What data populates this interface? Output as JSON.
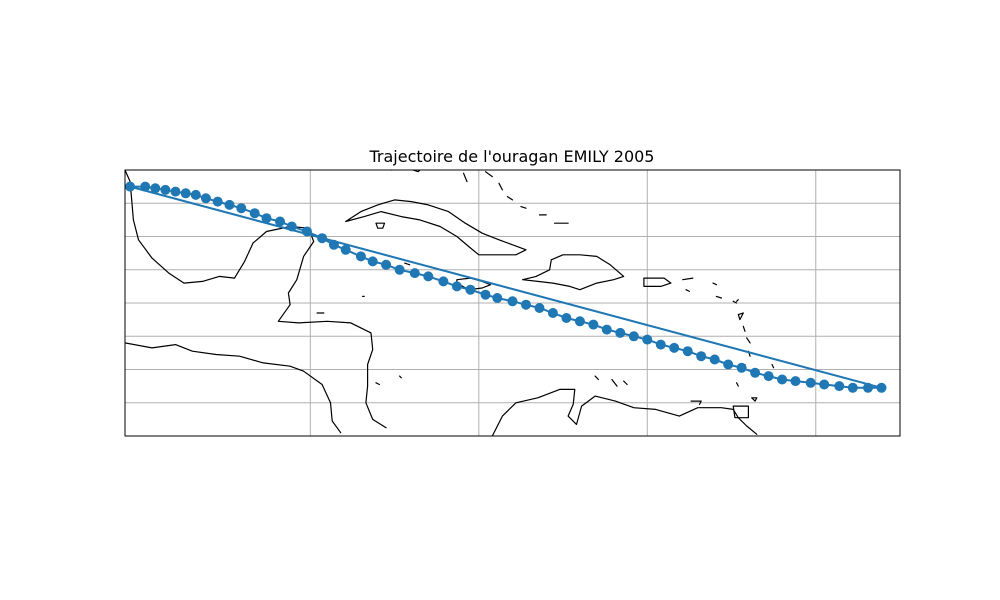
{
  "title": "Trajectoire de l'ouragan EMILY 2005",
  "colors": {
    "track": "#1f77b4",
    "coastline": "#000000",
    "grid": "#b0b0b0",
    "background": "#ffffff"
  },
  "map": {
    "projection": "PlateCarree",
    "extent_lon": [
      -98,
      -52
    ],
    "extent_lat": [
      9,
      25
    ],
    "grid": true,
    "gridline_lon": [
      -87,
      -77,
      -67,
      -57
    ],
    "gridline_lat": [
      11,
      13,
      15,
      17,
      19,
      21,
      23
    ]
  },
  "chart_data": {
    "type": "line",
    "title": "Trajectoire de l'ouragan EMILY 2005",
    "series": [
      {
        "marker": "circle",
        "path": "straight-line return leg without markers from east end back to west end",
        "points": [
          [
            -97.7,
            24.0
          ],
          [
            -96.8,
            24.0
          ],
          [
            -96.2,
            23.9
          ],
          [
            -95.6,
            23.8
          ],
          [
            -95.0,
            23.7
          ],
          [
            -94.4,
            23.6
          ],
          [
            -93.8,
            23.5
          ],
          [
            -93.2,
            23.3
          ],
          [
            -92.5,
            23.1
          ],
          [
            -91.8,
            22.9
          ],
          [
            -91.1,
            22.7
          ],
          [
            -90.3,
            22.4
          ],
          [
            -89.6,
            22.1
          ],
          [
            -88.8,
            21.9
          ],
          [
            -88.1,
            21.6
          ],
          [
            -87.2,
            21.3
          ],
          [
            -86.3,
            20.9
          ],
          [
            -85.6,
            20.5
          ],
          [
            -84.9,
            20.2
          ],
          [
            -84.0,
            19.8
          ],
          [
            -83.3,
            19.5
          ],
          [
            -82.5,
            19.3
          ],
          [
            -81.7,
            19.0
          ],
          [
            -80.8,
            18.8
          ],
          [
            -80.0,
            18.6
          ],
          [
            -79.1,
            18.3
          ],
          [
            -78.3,
            18.0
          ],
          [
            -77.5,
            17.8
          ],
          [
            -76.6,
            17.5
          ],
          [
            -75.9,
            17.3
          ],
          [
            -75.0,
            17.1
          ],
          [
            -74.2,
            16.9
          ],
          [
            -73.4,
            16.7
          ],
          [
            -72.6,
            16.4
          ],
          [
            -71.8,
            16.1
          ],
          [
            -71.0,
            15.9
          ],
          [
            -70.2,
            15.7
          ],
          [
            -69.4,
            15.4
          ],
          [
            -68.6,
            15.2
          ],
          [
            -67.8,
            15.0
          ],
          [
            -67.0,
            14.8
          ],
          [
            -66.2,
            14.5
          ],
          [
            -65.4,
            14.3
          ],
          [
            -64.6,
            14.1
          ],
          [
            -63.8,
            13.8
          ],
          [
            -63.0,
            13.6
          ],
          [
            -62.2,
            13.3
          ],
          [
            -61.4,
            13.1
          ],
          [
            -60.6,
            12.8
          ],
          [
            -59.8,
            12.6
          ],
          [
            -59.0,
            12.4
          ],
          [
            -58.2,
            12.3
          ],
          [
            -57.3,
            12.2
          ],
          [
            -56.5,
            12.1
          ],
          [
            -55.6,
            12.0
          ],
          [
            -54.8,
            11.9
          ],
          [
            -53.9,
            11.9
          ],
          [
            -53.1,
            11.9
          ]
        ]
      }
    ]
  },
  "coastlines": {
    "cuba": [
      [
        -84.9,
        21.9
      ],
      [
        -84.0,
        22.5
      ],
      [
        -83.0,
        22.9
      ],
      [
        -82.0,
        23.2
      ],
      [
        -81.0,
        23.1
      ],
      [
        -80.0,
        22.9
      ],
      [
        -78.8,
        22.5
      ],
      [
        -77.8,
        21.8
      ],
      [
        -76.8,
        21.2
      ],
      [
        -75.8,
        20.8
      ],
      [
        -74.2,
        20.2
      ],
      [
        -74.8,
        19.9
      ],
      [
        -75.8,
        19.9
      ],
      [
        -77.0,
        19.9
      ],
      [
        -77.6,
        20.4
      ],
      [
        -78.3,
        21.0
      ],
      [
        -79.3,
        21.6
      ],
      [
        -80.5,
        22.0
      ],
      [
        -81.6,
        22.2
      ],
      [
        -82.8,
        22.5
      ],
      [
        -83.8,
        22.2
      ],
      [
        -84.9,
        21.9
      ]
    ],
    "isla_juventud": [
      [
        -83.1,
        21.8
      ],
      [
        -82.6,
        21.8
      ],
      [
        -82.7,
        21.5
      ],
      [
        -83.0,
        21.5
      ],
      [
        -83.1,
        21.8
      ]
    ],
    "jamaica": [
      [
        -78.3,
        18.4
      ],
      [
        -77.5,
        18.5
      ],
      [
        -76.8,
        18.3
      ],
      [
        -76.3,
        18.1
      ],
      [
        -76.8,
        17.9
      ],
      [
        -77.6,
        17.8
      ],
      [
        -78.3,
        18.2
      ],
      [
        -78.3,
        18.4
      ]
    ],
    "hispaniola": [
      [
        -74.4,
        18.4
      ],
      [
        -73.6,
        18.6
      ],
      [
        -72.8,
        19.0
      ],
      [
        -72.7,
        19.6
      ],
      [
        -72.0,
        19.9
      ],
      [
        -71.0,
        19.9
      ],
      [
        -70.0,
        19.8
      ],
      [
        -69.2,
        19.3
      ],
      [
        -68.4,
        18.6
      ],
      [
        -69.0,
        18.4
      ],
      [
        -70.0,
        18.2
      ],
      [
        -71.0,
        17.8
      ],
      [
        -71.6,
        18.0
      ],
      [
        -72.6,
        18.2
      ],
      [
        -73.5,
        18.3
      ],
      [
        -74.4,
        18.4
      ]
    ],
    "puerto_rico": [
      [
        -67.2,
        18.5
      ],
      [
        -66.0,
        18.5
      ],
      [
        -65.6,
        18.2
      ],
      [
        -66.2,
        18.0
      ],
      [
        -67.2,
        18.0
      ],
      [
        -67.2,
        18.5
      ]
    ],
    "yucatan": [
      [
        -91.5,
        18.5
      ],
      [
        -90.9,
        19.5
      ],
      [
        -90.4,
        20.6
      ],
      [
        -89.6,
        21.3
      ],
      [
        -88.2,
        21.6
      ],
      [
        -87.1,
        21.5
      ],
      [
        -86.8,
        20.7
      ],
      [
        -87.4,
        19.8
      ],
      [
        -87.8,
        18.4
      ],
      [
        -88.3,
        17.6
      ],
      [
        -88.2,
        16.9
      ]
    ],
    "central_america": [
      [
        -88.2,
        16.9
      ],
      [
        -88.9,
        15.9
      ],
      [
        -87.7,
        15.8
      ],
      [
        -86.0,
        15.9
      ],
      [
        -84.6,
        15.8
      ],
      [
        -83.4,
        15.2
      ],
      [
        -83.3,
        14.2
      ],
      [
        -83.6,
        13.3
      ],
      [
        -83.6,
        12.0
      ],
      [
        -83.7,
        11.0
      ],
      [
        -83.3,
        10.0
      ],
      [
        -82.5,
        9.5
      ]
    ],
    "pacific_coast": [
      [
        -98.0,
        14.6
      ],
      [
        -96.4,
        14.3
      ],
      [
        -95.0,
        14.5
      ],
      [
        -94.0,
        14.1
      ],
      [
        -92.6,
        13.9
      ],
      [
        -91.2,
        13.8
      ],
      [
        -89.8,
        13.4
      ],
      [
        -88.2,
        13.2
      ],
      [
        -87.4,
        12.9
      ],
      [
        -86.3,
        12.1
      ],
      [
        -85.8,
        11.0
      ],
      [
        -85.7,
        9.9
      ],
      [
        -85.2,
        9.2
      ]
    ],
    "gulf_coast": [
      [
        -98.0,
        25.0
      ],
      [
        -97.7,
        24.3
      ],
      [
        -97.6,
        23.2
      ],
      [
        -97.5,
        22.0
      ],
      [
        -97.2,
        20.8
      ],
      [
        -96.4,
        19.7
      ],
      [
        -95.4,
        18.8
      ],
      [
        -94.5,
        18.2
      ],
      [
        -93.4,
        18.3
      ],
      [
        -92.4,
        18.6
      ],
      [
        -91.5,
        18.5
      ]
    ],
    "florida": [
      [
        -82.2,
        25.0
      ],
      [
        -81.2,
        25.1
      ],
      [
        -80.6,
        24.9
      ],
      [
        -80.3,
        25.2
      ]
    ],
    "south_america": [
      [
        -76.2,
        9.0
      ],
      [
        -75.6,
        10.2
      ],
      [
        -74.8,
        11.0
      ],
      [
        -73.5,
        11.3
      ],
      [
        -72.2,
        11.8
      ],
      [
        -71.3,
        11.8
      ],
      [
        -71.4,
        10.9
      ],
      [
        -71.7,
        10.2
      ],
      [
        -71.2,
        9.7
      ],
      [
        -70.9,
        10.8
      ],
      [
        -70.1,
        11.4
      ],
      [
        -68.9,
        11.1
      ],
      [
        -67.8,
        10.7
      ],
      [
        -66.5,
        10.6
      ],
      [
        -65.1,
        10.2
      ],
      [
        -64.0,
        10.7
      ],
      [
        -62.6,
        10.7
      ],
      [
        -61.9,
        10.6
      ],
      [
        -61.6,
        10.1
      ],
      [
        -61.1,
        9.6
      ],
      [
        -60.5,
        9.1
      ]
    ],
    "trinidad": [
      [
        -61.9,
        10.8
      ],
      [
        -61.0,
        10.8
      ],
      [
        -61.0,
        10.1
      ],
      [
        -61.8,
        10.1
      ],
      [
        -61.9,
        10.8
      ]
    ],
    "island_tobago": [
      [
        -60.8,
        11.3
      ],
      [
        -60.5,
        11.3
      ],
      [
        -60.6,
        11.1
      ],
      [
        -60.8,
        11.3
      ]
    ],
    "lesser_antilles_1": [
      [
        -61.7,
        17.1
      ],
      [
        -61.6,
        17.2
      ]
    ],
    "lesser_antilles_2": [
      [
        -61.6,
        16.3
      ],
      [
        -61.3,
        16.4
      ],
      [
        -61.5,
        16.0
      ],
      [
        -61.6,
        16.3
      ]
    ],
    "lesser_antilles_3": [
      [
        -61.3,
        15.6
      ],
      [
        -61.2,
        15.3
      ]
    ],
    "lesser_antilles_4": [
      [
        -61.1,
        14.9
      ],
      [
        -60.9,
        14.6
      ]
    ],
    "lesser_antilles_5": [
      [
        -61.0,
        14.1
      ],
      [
        -60.9,
        13.8
      ]
    ],
    "lesser_antilles_6": [
      [
        -59.6,
        13.3
      ],
      [
        -59.5,
        13.1
      ]
    ],
    "lesser_antilles_7": [
      [
        -61.2,
        13.3
      ],
      [
        -61.2,
        13.1
      ]
    ],
    "lesser_antilles_8": [
      [
        -61.7,
        12.2
      ],
      [
        -61.6,
        12.0
      ]
    ],
    "abc_islands": [
      [
        -70.1,
        12.6
      ],
      [
        -69.9,
        12.4
      ]
    ],
    "abc_2": [
      [
        -69.1,
        12.4
      ],
      [
        -68.8,
        12.0
      ]
    ],
    "abc_3": [
      [
        -68.4,
        12.3
      ],
      [
        -68.2,
        12.1
      ]
    ],
    "margarita": [
      [
        -64.4,
        11.1
      ],
      [
        -63.8,
        11.1
      ],
      [
        -63.9,
        10.9
      ]
    ],
    "bahamas_1": [
      [
        -79.0,
        26.6
      ],
      [
        -78.0,
        26.6
      ]
    ],
    "bahamas_2": [
      [
        -77.9,
        24.8
      ],
      [
        -77.7,
        24.3
      ]
    ],
    "bahamas_3": [
      [
        -76.6,
        24.9
      ],
      [
        -76.2,
        24.6
      ]
    ],
    "bahamas_4": [
      [
        -75.8,
        24.2
      ],
      [
        -75.6,
        23.8
      ]
    ],
    "bahamas_5": [
      [
        -75.3,
        23.4
      ],
      [
        -75.0,
        23.2
      ]
    ],
    "bahamas_6": [
      [
        -74.5,
        22.8
      ],
      [
        -74.2,
        22.7
      ]
    ],
    "bahamas_7": [
      [
        -73.4,
        22.3
      ],
      [
        -73.0,
        22.3
      ]
    ],
    "turks": [
      [
        -72.5,
        21.8
      ],
      [
        -71.7,
        21.8
      ]
    ],
    "caymans": [
      [
        -81.4,
        19.4
      ],
      [
        -81.1,
        19.3
      ]
    ],
    "swan": [
      [
        -83.9,
        17.4
      ],
      [
        -83.8,
        17.4
      ]
    ],
    "bay_islands": [
      [
        -86.6,
        16.4
      ],
      [
        -86.2,
        16.4
      ]
    ],
    "corn_island": [
      [
        -83.1,
        12.2
      ],
      [
        -82.9,
        12.1
      ]
    ],
    "san_andres": [
      [
        -81.7,
        12.6
      ],
      [
        -81.6,
        12.5
      ]
    ],
    "virgin_isl": [
      [
        -64.9,
        18.4
      ],
      [
        -64.3,
        18.5
      ]
    ],
    "virgin_2": [
      [
        -64.7,
        17.8
      ],
      [
        -64.5,
        17.7
      ]
    ],
    "leeward_a": [
      [
        -63.1,
        18.2
      ],
      [
        -62.9,
        18.1
      ]
    ],
    "leeward_b": [
      [
        -62.9,
        17.4
      ],
      [
        -62.6,
        17.3
      ]
    ],
    "leeward_c": [
      [
        -61.9,
        17.1
      ],
      [
        -61.7,
        17.0
      ]
    ]
  }
}
